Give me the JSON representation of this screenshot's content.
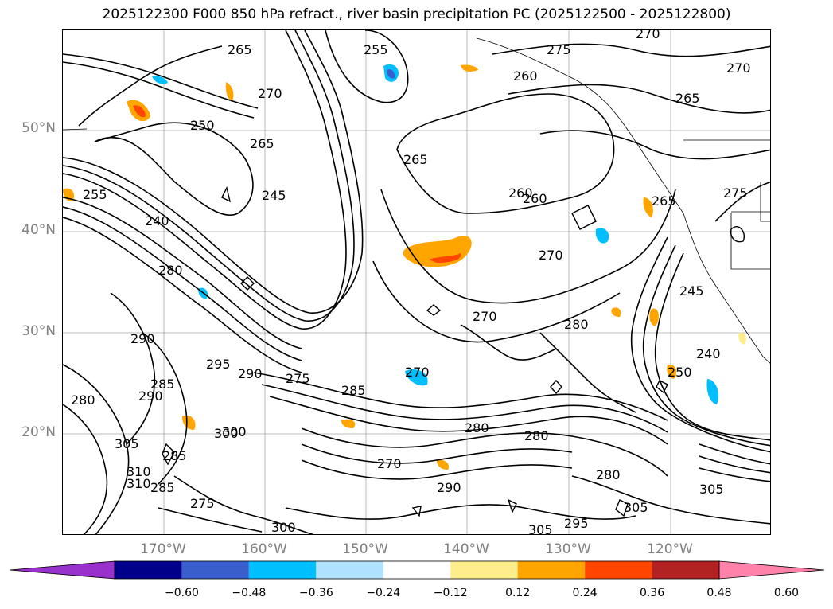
{
  "title": "2025122300 F000 850 hPa refract., river basin precipitation PC (2025122500 - 2025122800)",
  "latitude_labels": [
    "50°N",
    "40°N",
    "30°N",
    "20°N"
  ],
  "longitude_labels": [
    "170°W",
    "160°W",
    "150°W",
    "140°W",
    "130°W",
    "120°W"
  ],
  "colorbar": {
    "colors": [
      "#9932cc",
      "#00008b",
      "#3a5fcd",
      "#00bfff",
      "#b0e2ff",
      "#ffffff",
      "#ffec8b",
      "#ffa500",
      "#ff4500",
      "#b22222",
      "#ff82ab"
    ],
    "tick_labels": [
      "−0.60",
      "−0.48",
      "−0.36",
      "−0.24",
      "−0.12",
      "0.12",
      "0.24",
      "0.36",
      "0.48",
      "0.60"
    ]
  },
  "contour_labels": [
    "270",
    "275",
    "270",
    "265",
    "260",
    "255",
    "265",
    "270",
    "250",
    "265",
    "245",
    "240",
    "255",
    "260",
    "265",
    "270",
    "280",
    "285",
    "290",
    "295",
    "300",
    "305",
    "310",
    "265",
    "275",
    "260",
    "270",
    "280",
    "280",
    "290",
    "285",
    "290",
    "300",
    "280",
    "280",
    "295",
    "305",
    "305",
    "245",
    "250",
    "240",
    "270",
    "275",
    "280",
    "285",
    "270",
    "285",
    "305",
    "300",
    "290",
    "310",
    "275"
  ],
  "map_colors": {
    "contour": "#000000",
    "grid": "#808080",
    "coast": "#000000",
    "orange_fill": "#ffa500",
    "yellow_fill": "#ffec8b",
    "red_fill": "#ff4500",
    "cyan_fill": "#00bfff",
    "lightblue_fill": "#b0e2ff",
    "blue_fill": "#3a5fcd"
  }
}
